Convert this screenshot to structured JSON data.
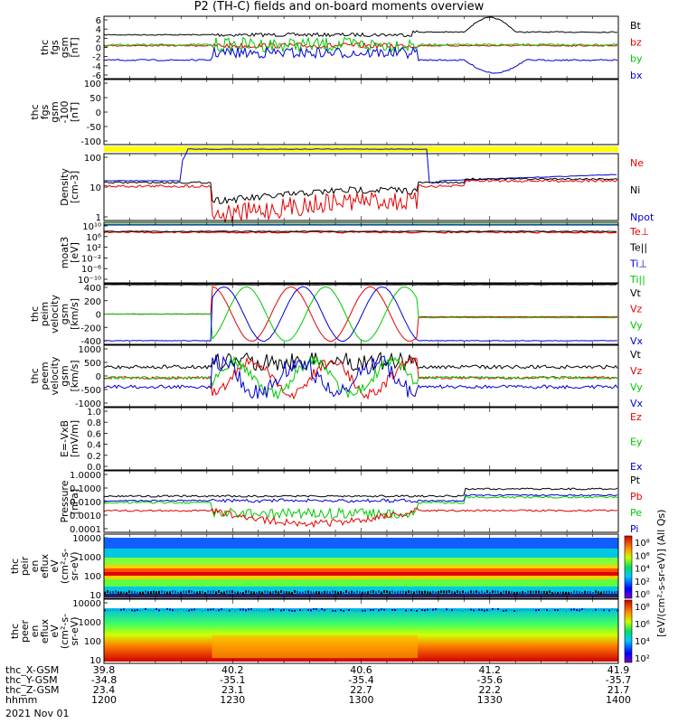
{
  "title": "P2 (TH-C) fields and on-board moments overview",
  "colors": {
    "black": "#000000",
    "red": "#e60000",
    "green": "#00c800",
    "blue": "#0000d0",
    "yellow": "#ffff00"
  },
  "chart_data": [
    {
      "type": "line",
      "id": "fgs_gsm",
      "ylabel": [
        "thc",
        "fgs",
        "gsm",
        "[nT]"
      ],
      "yticks": [
        "6",
        "4",
        "2",
        "0",
        "-2",
        "-4",
        "-6"
      ],
      "ylim": [
        -6,
        6
      ],
      "series": [
        {
          "name": "Bt",
          "color": "#000000"
        },
        {
          "name": "bz",
          "color": "#e60000"
        },
        {
          "name": "by",
          "color": "#00c800"
        },
        {
          "name": "bx",
          "color": "#0000d0"
        }
      ]
    },
    {
      "type": "line",
      "id": "fgs_gsm_100",
      "ylabel": [
        "thc",
        "fgs",
        "gsm",
        "-100",
        "[nT]"
      ],
      "yticks": [
        "100",
        "50",
        "0",
        "-50",
        "-100"
      ],
      "ylim": [
        -125,
        100
      ],
      "series": []
    },
    {
      "type": "line",
      "id": "density",
      "ylabel": [
        "Density",
        "[cm-3]"
      ],
      "yticks": [
        "100",
        "10",
        "1"
      ],
      "yscale": "log",
      "series": [
        {
          "name": "Ne",
          "color": "#e60000"
        },
        {
          "name": "Ni",
          "color": "#000000"
        },
        {
          "name": "Npot",
          "color": "#0000d0"
        }
      ]
    },
    {
      "type": "line",
      "id": "temperature",
      "ylabel": [
        "moat3",
        "[eV]"
      ],
      "yticks": [
        "10¹⁰",
        "10⁶",
        "10²",
        "10⁻²",
        "10⁻⁶",
        "10⁻¹⁰"
      ],
      "yscale": "log",
      "series": [
        {
          "name": "Te⊥",
          "color": "#e60000"
        },
        {
          "name": "Te||",
          "color": "#000000"
        },
        {
          "name": "Ti⊥",
          "color": "#0000d0"
        },
        {
          "name": "Ti||",
          "color": "#00c800"
        }
      ]
    },
    {
      "type": "line",
      "id": "peim_velocity",
      "ylabel": [
        "thc",
        "peim",
        "velocity",
        "gsm",
        "[km/s]"
      ],
      "yticks": [
        "400",
        "200",
        "0",
        "-200",
        "-400"
      ],
      "ylim": [
        -450,
        450
      ],
      "series": [
        {
          "name": "Vt",
          "color": "#000000"
        },
        {
          "name": "Vz",
          "color": "#e60000"
        },
        {
          "name": "Vy",
          "color": "#00c800"
        },
        {
          "name": "Vx",
          "color": "#0000d0"
        }
      ]
    },
    {
      "type": "line",
      "id": "peem_velocity",
      "ylabel": [
        "thc",
        "peem",
        "velocity",
        "gsm",
        "[km/s]"
      ],
      "yticks": [
        "1000",
        "500",
        "0",
        "-500",
        "-1000"
      ],
      "ylim": [
        -1000,
        1000
      ],
      "series": [
        {
          "name": "Vt",
          "color": "#000000"
        },
        {
          "name": "Vz",
          "color": "#e60000"
        },
        {
          "name": "Vy",
          "color": "#00c800"
        },
        {
          "name": "Vx",
          "color": "#0000d0"
        }
      ]
    },
    {
      "type": "line",
      "id": "efield",
      "ylabel": [
        "E=-VxB",
        "[mV/m]"
      ],
      "yticks": [
        "1.0",
        "0.8",
        "0.6",
        "0.4",
        "0.2",
        "0.0"
      ],
      "ylim": [
        0,
        1
      ],
      "series": [
        {
          "name": "Ez",
          "color": "#e60000"
        },
        {
          "name": "Ey",
          "color": "#00c800"
        },
        {
          "name": "Ex",
          "color": "#0000d0"
        }
      ]
    },
    {
      "type": "line",
      "id": "pressure",
      "ylabel": [
        "Pressure",
        "[nPa]"
      ],
      "yticks": [
        "1.0000",
        "0.1000",
        "0.0100",
        "0.0010",
        "0.0001"
      ],
      "yscale": "log",
      "series": [
        {
          "name": "Pt",
          "color": "#000000"
        },
        {
          "name": "Pb",
          "color": "#e60000"
        },
        {
          "name": "Pe",
          "color": "#00c800"
        },
        {
          "name": "Pi",
          "color": "#0000d0"
        }
      ]
    },
    {
      "type": "heatmap",
      "id": "peir_en_eflux",
      "ylabel": [
        "thc",
        "peir",
        "en",
        "eflux",
        "eV",
        "(cm²-s-",
        "sr-eV)"
      ],
      "yticks": [
        "10000",
        "1000",
        "100",
        "10"
      ],
      "yscale": "log"
    },
    {
      "type": "heatmap",
      "id": "peer_en_eflux",
      "ylabel": [
        "thc",
        "peer",
        "en",
        "eflux",
        "eV",
        "(cm²-s-",
        "sr-eV)"
      ],
      "yticks": [
        "10000",
        "1000",
        "100",
        "10"
      ],
      "yscale": "log"
    }
  ],
  "colorbars": [
    {
      "label": "[eV/(cm²-s-sr-eV)] (All Qs)",
      "ticks": [
        "10⁸",
        "10⁶",
        "10⁴",
        "10²",
        "10⁰"
      ]
    },
    {
      "label": "[eV/(cm²-s-sr-eV)] (All Qs)",
      "ticks": [
        "10⁸",
        "10⁶",
        "10⁴",
        "10²"
      ]
    }
  ],
  "xaxis": {
    "rows": [
      {
        "label": "thc_X-GSM",
        "values": [
          "39.8",
          "40.2",
          "40.6",
          "41.2",
          "41.9"
        ]
      },
      {
        "label": "thc_Y-GSM",
        "values": [
          "-34.8",
          "-35.1",
          "-35.4",
          "-35.6",
          "-35.7"
        ]
      },
      {
        "label": "thc_Z-GSM",
        "values": [
          "23.4",
          "23.1",
          "22.7",
          "22.2",
          "21.7"
        ]
      },
      {
        "label": "hhmm",
        "values": [
          "1200",
          "1230",
          "1300",
          "1330",
          "1400"
        ]
      }
    ],
    "date": "2021 Nov 01"
  }
}
